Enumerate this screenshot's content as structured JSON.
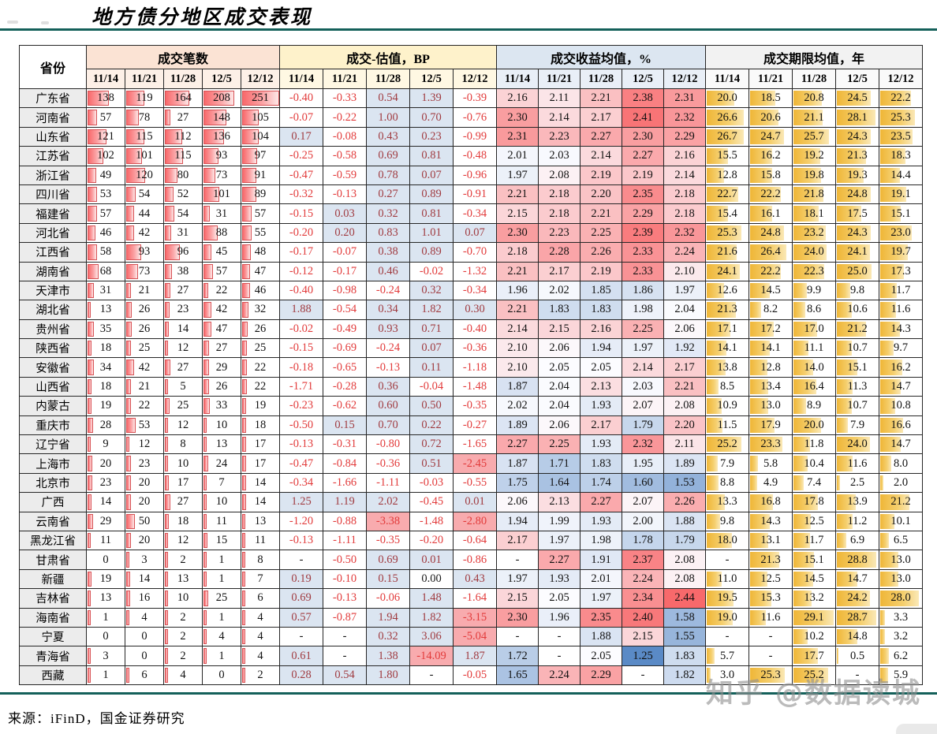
{
  "title": "地方债分地区成交表现",
  "source_note": "来源：iFinD，国金证券研究",
  "watermark": "知乎 @数据读城",
  "colors": {
    "accent_rule": "#14605a",
    "group_counts_bg": "#fbe3d4",
    "group_counts_sub_bg": "#fdf0e7",
    "group_bp_bg": "#fef2cb",
    "group_bp_sub_bg": "#fff8e3",
    "group_yield_bg": "#dce6f1",
    "group_yield_sub_bg": "#e9eff7",
    "group_term_bg": "#f2f2f2",
    "group_term_sub_bg": "#fafafa",
    "province_col_bg": "#ececec",
    "count_bar": "#f8696b",
    "term_bar": "#efb637",
    "bp_positive_bg": "#dbe5f1",
    "bp_very_negative_bg": "#f8abae",
    "bp_positive_text": "#a03b40",
    "bp_negative_text": "#e23b3b",
    "yield_scale_low": "#5a8ac6",
    "yield_scale_mid": "#fcfcff",
    "yield_scale_high": "#f8696b"
  },
  "table": {
    "province_header": "省份",
    "dates": [
      "11/14",
      "11/21",
      "11/28",
      "12/5",
      "12/12"
    ],
    "groups": [
      {
        "key": "counts",
        "label": "成交笔数"
      },
      {
        "key": "bp",
        "label": "成交-估值，BP"
      },
      {
        "key": "yield",
        "label": "成交收益均值，%"
      },
      {
        "key": "term",
        "label": "成交期限均值，年"
      }
    ],
    "rows": [
      {
        "province": "广东省",
        "counts": [
          138,
          119,
          164,
          208,
          251
        ],
        "bp": [
          -0.4,
          -0.33,
          0.54,
          1.39,
          -0.39
        ],
        "yield": [
          2.16,
          2.11,
          2.21,
          2.38,
          2.31
        ],
        "term": [
          20.0,
          18.5,
          20.8,
          24.5,
          22.2
        ]
      },
      {
        "province": "河南省",
        "counts": [
          57,
          78,
          27,
          148,
          105
        ],
        "bp": [
          -0.07,
          -0.22,
          1.0,
          0.7,
          -0.76
        ],
        "yield": [
          2.3,
          2.14,
          2.17,
          2.41,
          2.32
        ],
        "term": [
          26.6,
          20.6,
          21.1,
          28.1,
          25.3
        ]
      },
      {
        "province": "山东省",
        "counts": [
          121,
          115,
          112,
          136,
          104
        ],
        "bp": [
          0.17,
          -0.08,
          0.43,
          0.23,
          -0.99
        ],
        "yield": [
          2.31,
          2.23,
          2.27,
          2.3,
          2.29
        ],
        "term": [
          26.7,
          24.7,
          25.7,
          24.3,
          23.5
        ]
      },
      {
        "province": "江苏省",
        "counts": [
          102,
          101,
          115,
          93,
          97
        ],
        "bp": [
          -0.25,
          -0.58,
          0.69,
          0.81,
          -0.48
        ],
        "yield": [
          2.01,
          2.03,
          2.14,
          2.27,
          2.16
        ],
        "term": [
          15.5,
          16.2,
          19.2,
          21.3,
          18.3
        ]
      },
      {
        "province": "浙江省",
        "counts": [
          49,
          120,
          80,
          73,
          91
        ],
        "bp": [
          -0.47,
          -0.59,
          0.78,
          0.07,
          -0.96
        ],
        "yield": [
          1.97,
          2.08,
          2.19,
          2.19,
          2.14
        ],
        "term": [
          12.8,
          15.8,
          19.8,
          19.3,
          14.4
        ]
      },
      {
        "province": "四川省",
        "counts": [
          53,
          54,
          52,
          101,
          89
        ],
        "bp": [
          -0.32,
          -0.13,
          0.27,
          0.89,
          -0.91
        ],
        "yield": [
          2.21,
          2.18,
          2.2,
          2.35,
          2.18
        ],
        "term": [
          22.7,
          22.2,
          21.8,
          24.8,
          19.1
        ]
      },
      {
        "province": "福建省",
        "counts": [
          57,
          44,
          54,
          31,
          57
        ],
        "bp": [
          -0.15,
          0.03,
          0.32,
          0.81,
          -0.34
        ],
        "yield": [
          2.15,
          2.18,
          2.21,
          2.29,
          2.18
        ],
        "term": [
          15.4,
          16.1,
          18.1,
          17.5,
          15.1
        ]
      },
      {
        "province": "河北省",
        "counts": [
          46,
          42,
          31,
          88,
          55
        ],
        "bp": [
          -0.2,
          0.2,
          0.83,
          1.01,
          0.07
        ],
        "yield": [
          2.3,
          2.23,
          2.25,
          2.39,
          2.32
        ],
        "term": [
          25.3,
          24.8,
          23.2,
          24.3,
          23.0
        ]
      },
      {
        "province": "江西省",
        "counts": [
          58,
          93,
          96,
          45,
          48
        ],
        "bp": [
          -0.17,
          -0.07,
          0.38,
          0.89,
          -0.7
        ],
        "yield": [
          2.18,
          2.28,
          2.26,
          2.33,
          2.24
        ],
        "term": [
          21.6,
          26.4,
          24.0,
          24.1,
          19.7
        ]
      },
      {
        "province": "湖南省",
        "counts": [
          68,
          73,
          38,
          57,
          47
        ],
        "bp": [
          -0.12,
          -0.17,
          0.46,
          -0.02,
          -1.32
        ],
        "yield": [
          2.21,
          2.17,
          2.19,
          2.33,
          2.1
        ],
        "term": [
          24.1,
          22.2,
          22.3,
          25.0,
          17.3
        ]
      },
      {
        "province": "天津市",
        "counts": [
          31,
          21,
          27,
          22,
          46
        ],
        "bp": [
          -0.4,
          -0.98,
          -0.24,
          0.32,
          -0.34
        ],
        "yield": [
          1.96,
          2.02,
          1.85,
          1.86,
          1.97
        ],
        "term": [
          12.6,
          14.5,
          9.9,
          9.8,
          11.7
        ]
      },
      {
        "province": "湖北省",
        "counts": [
          13,
          26,
          23,
          42,
          32
        ],
        "bp": [
          1.88,
          -0.54,
          0.34,
          1.82,
          0.3
        ],
        "yield": [
          2.21,
          1.83,
          1.83,
          1.98,
          2.04
        ],
        "term": [
          21.3,
          8.2,
          8.6,
          10.6,
          11.6
        ]
      },
      {
        "province": "贵州省",
        "counts": [
          35,
          26,
          14,
          47,
          26
        ],
        "bp": [
          -0.02,
          -0.49,
          0.93,
          0.71,
          -0.4
        ],
        "yield": [
          2.14,
          2.15,
          2.16,
          2.25,
          2.06
        ],
        "term": [
          17.1,
          17.2,
          17.0,
          21.2,
          14.3
        ]
      },
      {
        "province": "陕西省",
        "counts": [
          18,
          25,
          12,
          27,
          25
        ],
        "bp": [
          -0.15,
          -0.69,
          -0.24,
          0.07,
          -0.36
        ],
        "yield": [
          2.1,
          2.06,
          1.94,
          1.97,
          1.92
        ],
        "term": [
          14.1,
          14.1,
          11.1,
          10.7,
          9.7
        ]
      },
      {
        "province": "安徽省",
        "counts": [
          34,
          42,
          27,
          29,
          22
        ],
        "bp": [
          -0.18,
          -0.65,
          -0.13,
          0.11,
          -1.18
        ],
        "yield": [
          2.1,
          2.05,
          2.05,
          2.14,
          2.17
        ],
        "term": [
          13.8,
          12.8,
          14.0,
          15.1,
          16.2
        ]
      },
      {
        "province": "山西省",
        "counts": [
          18,
          21,
          5,
          26,
          22
        ],
        "bp": [
          -1.71,
          -0.28,
          0.36,
          -0.04,
          -1.48
        ],
        "yield": [
          1.87,
          2.04,
          2.13,
          2.03,
          2.21
        ],
        "term": [
          8.5,
          13.4,
          16.4,
          11.3,
          14.7
        ]
      },
      {
        "province": "内蒙古",
        "counts": [
          19,
          22,
          25,
          33,
          19
        ],
        "bp": [
          -0.23,
          -0.62,
          0.6,
          0.5,
          -0.35
        ],
        "yield": [
          2.02,
          2.04,
          1.93,
          2.07,
          2.08
        ],
        "term": [
          10.9,
          13.0,
          8.9,
          10.7,
          10.8
        ]
      },
      {
        "province": "重庆市",
        "counts": [
          28,
          53,
          12,
          10,
          18
        ],
        "bp": [
          -0.5,
          0.15,
          0.7,
          0.22,
          -0.27
        ],
        "yield": [
          1.89,
          2.06,
          2.17,
          1.79,
          2.2
        ],
        "term": [
          11.5,
          17.9,
          20.0,
          7.9,
          16.6
        ]
      },
      {
        "province": "辽宁省",
        "counts": [
          9,
          12,
          8,
          13,
          17
        ],
        "bp": [
          -0.13,
          -0.31,
          -0.8,
          0.72,
          -1.65
        ],
        "yield": [
          2.27,
          2.25,
          1.93,
          2.32,
          2.11
        ],
        "term": [
          25.2,
          23.3,
          11.8,
          24.0,
          14.7
        ]
      },
      {
        "province": "上海市",
        "counts": [
          20,
          23,
          10,
          24,
          17
        ],
        "bp": [
          -0.47,
          -0.84,
          -0.36,
          0.51,
          -2.45
        ],
        "yield": [
          1.87,
          1.71,
          1.83,
          1.95,
          1.89
        ],
        "term": [
          7.9,
          5.8,
          10.4,
          11.6,
          8.0
        ]
      },
      {
        "province": "北京市",
        "counts": [
          23,
          20,
          17,
          7,
          14
        ],
        "bp": [
          -0.34,
          -1.66,
          -1.11,
          -0.03,
          -0.55
        ],
        "yield": [
          1.75,
          1.64,
          1.74,
          1.6,
          1.53
        ],
        "term": [
          8.8,
          4.9,
          7.4,
          2.5,
          2.0
        ]
      },
      {
        "province": "广西",
        "counts": [
          14,
          20,
          27,
          10,
          14
        ],
        "bp": [
          1.25,
          1.19,
          2.02,
          -0.45,
          0.01
        ],
        "yield": [
          2.06,
          2.13,
          2.27,
          2.07,
          2.26
        ],
        "term": [
          13.3,
          16.8,
          17.8,
          13.9,
          21.2
        ]
      },
      {
        "province": "云南省",
        "counts": [
          29,
          50,
          18,
          11,
          13
        ],
        "bp": [
          -1.2,
          -0.88,
          -3.38,
          -1.48,
          -2.8
        ],
        "yield": [
          1.94,
          1.99,
          1.93,
          2.0,
          1.88
        ],
        "term": [
          9.8,
          14.3,
          12.5,
          11.2,
          10.1
        ]
      },
      {
        "province": "黑龙江省",
        "counts": [
          11,
          20,
          12,
          15,
          11
        ],
        "bp": [
          -0.13,
          -1.11,
          -0.35,
          -0.2,
          -0.64
        ],
        "yield": [
          2.17,
          1.97,
          1.98,
          1.78,
          1.79
        ],
        "term": [
          18.0,
          13.1,
          11.7,
          6.9,
          6.5
        ]
      },
      {
        "province": "甘肃省",
        "counts": [
          0,
          3,
          2,
          1,
          8
        ],
        "bp": [
          "-",
          -0.5,
          0.69,
          0.01,
          -0.86
        ],
        "yield": [
          "-",
          2.27,
          1.91,
          2.37,
          2.08
        ],
        "term": [
          "-",
          21.3,
          15.1,
          28.8,
          13.0
        ]
      },
      {
        "province": "新疆",
        "counts": [
          19,
          14,
          13,
          1,
          7
        ],
        "bp": [
          0.19,
          -0.1,
          0.15,
          0.0,
          0.43
        ],
        "yield": [
          1.97,
          1.93,
          2.01,
          2.24,
          2.08
        ],
        "term": [
          11.0,
          12.5,
          14.5,
          14.7,
          13.0
        ]
      },
      {
        "province": "吉林省",
        "counts": [
          13,
          16,
          10,
          25,
          6
        ],
        "bp": [
          0.69,
          -0.13,
          -0.06,
          1.48,
          -1.64
        ],
        "yield": [
          2.15,
          2.05,
          1.97,
          2.34,
          2.44
        ],
        "term": [
          19.5,
          15.3,
          13.2,
          24.2,
          28.0
        ]
      },
      {
        "province": "海南省",
        "counts": [
          1,
          4,
          2,
          1,
          4
        ],
        "bp": [
          0.57,
          -0.87,
          1.94,
          1.82,
          -3.15
        ],
        "yield": [
          2.3,
          1.96,
          2.35,
          2.4,
          1.58
        ],
        "term": [
          19.0,
          11.6,
          29.1,
          28.7,
          3.3
        ]
      },
      {
        "province": "宁夏",
        "counts": [
          0,
          0,
          2,
          4,
          4
        ],
        "bp": [
          "-",
          "-",
          0.32,
          3.06,
          -5.04
        ],
        "yield": [
          "-",
          "-",
          1.88,
          2.15,
          1.55
        ],
        "term": [
          "-",
          "-",
          10.2,
          14.8,
          3.2
        ]
      },
      {
        "province": "青海省",
        "counts": [
          3,
          0,
          2,
          1,
          4
        ],
        "bp": [
          0.61,
          "-",
          1.38,
          -14.09,
          1.87
        ],
        "yield": [
          1.72,
          "-",
          2.05,
          1.25,
          1.83
        ],
        "term": [
          5.7,
          "-",
          17.7,
          0.5,
          6.2
        ]
      },
      {
        "province": "西藏",
        "counts": [
          1,
          6,
          4,
          0,
          2
        ],
        "bp": [
          0.28,
          0.54,
          1.8,
          "-",
          -0.05
        ],
        "yield": [
          1.65,
          2.24,
          2.29,
          "-",
          1.82
        ],
        "term": [
          3.0,
          25.3,
          25.2,
          "-",
          5.9
        ]
      }
    ]
  }
}
